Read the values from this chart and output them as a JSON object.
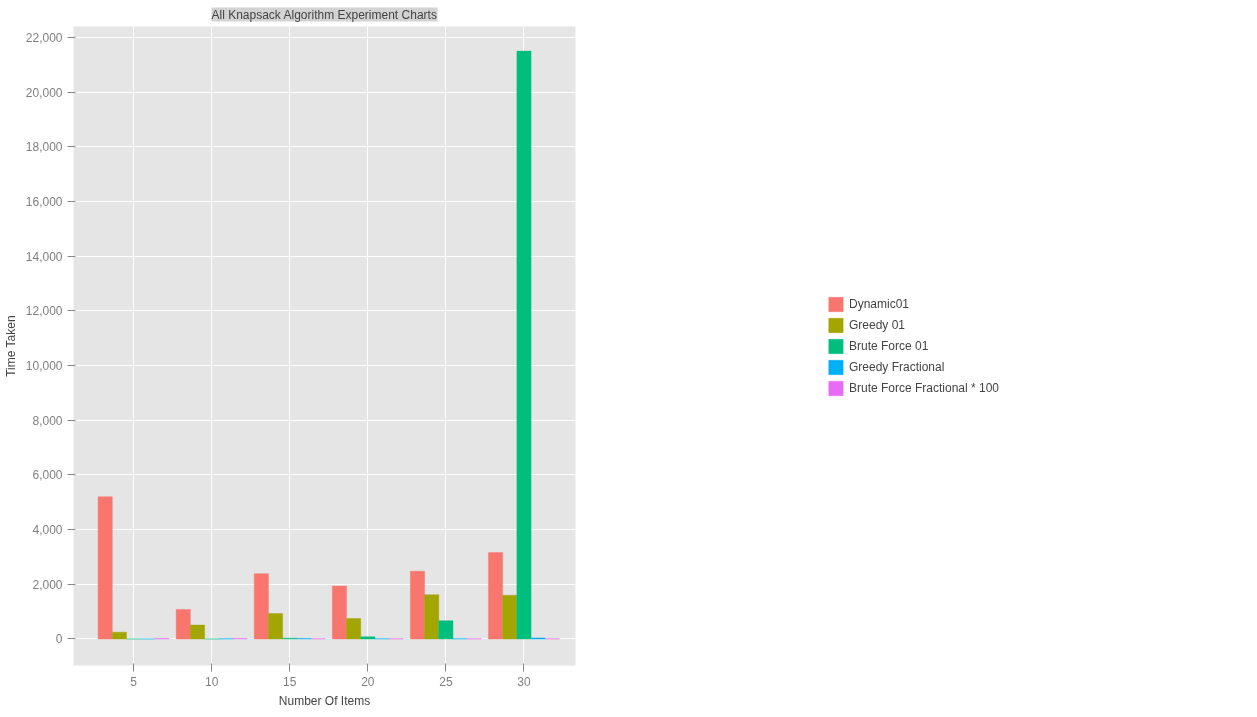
{
  "chart_data": {
    "type": "bar",
    "title": "All Knapsack Algorithm Experiment Charts",
    "xlabel": "Number Of Items",
    "ylabel": "Time Taken",
    "x": [
      5,
      10,
      15,
      20,
      25,
      30
    ],
    "series": [
      {
        "name": "Dynamic01",
        "color": "#f8766d",
        "values": [
          5200,
          1080,
          2390,
          1940,
          2480,
          3160
        ]
      },
      {
        "name": "Greedy 01",
        "color": "#a3a500",
        "values": [
          250,
          510,
          930,
          750,
          1620,
          1600
        ]
      },
      {
        "name": "Brute Force 01",
        "color": "#00bf7d",
        "values": [
          0,
          0,
          30,
          80,
          670,
          21500
        ]
      },
      {
        "name": "Greedy Fractional",
        "color": "#00b0f6",
        "values": [
          0,
          10,
          20,
          10,
          10,
          40
        ]
      },
      {
        "name": "Brute Force Fractional * 100",
        "color": "#e76bf3",
        "values": [
          20,
          20,
          10,
          10,
          10,
          10
        ]
      }
    ],
    "xlim": [
      1.15,
      33.3
    ],
    "ylim": [
      -970,
      22400
    ],
    "xticks": [
      5,
      10,
      15,
      20,
      25,
      30
    ],
    "yticks": [
      {
        "value": 0,
        "label": "0"
      },
      {
        "value": 2000,
        "label": "2,000"
      },
      {
        "value": 4000,
        "label": "4,000"
      },
      {
        "value": 6000,
        "label": "6,000"
      },
      {
        "value": 8000,
        "label": "8,000"
      },
      {
        "value": 10000,
        "label": "10,000"
      },
      {
        "value": 12000,
        "label": "12,000"
      },
      {
        "value": 14000,
        "label": "14,000"
      },
      {
        "value": 16000,
        "label": "16,000"
      },
      {
        "value": 18000,
        "label": "18,000"
      },
      {
        "value": 20000,
        "label": "20,000"
      },
      {
        "value": 22000,
        "label": "22,000"
      }
    ],
    "grid": true,
    "legend": "right"
  }
}
